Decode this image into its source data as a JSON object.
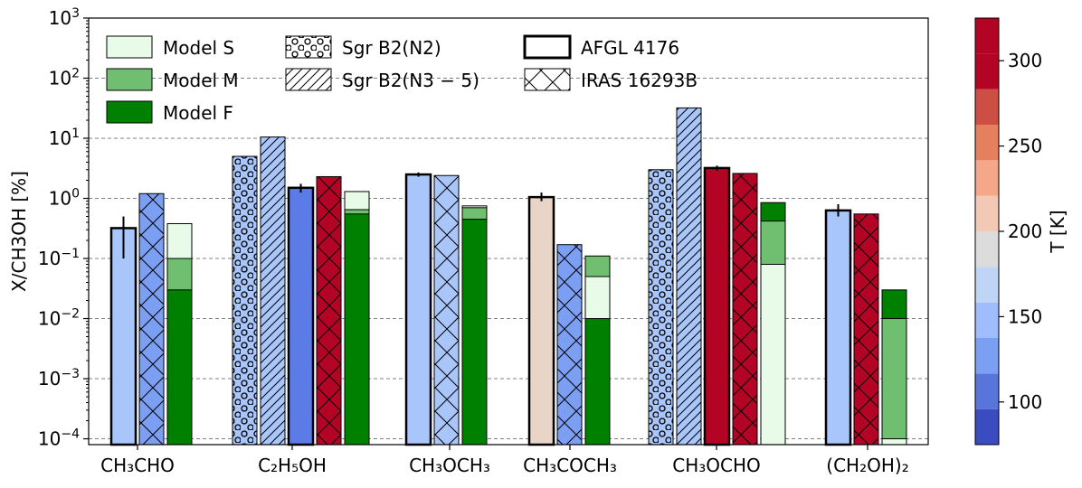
{
  "chart_data": {
    "type": "bar",
    "scale": "log",
    "ylabel": "X/CH3OH [%]",
    "ylim": [
      8e-05,
      1000
    ],
    "colorbar": {
      "label": "T [K]",
      "range": [
        75,
        325
      ],
      "ticks": [
        "100",
        "150",
        "200",
        "250",
        "300"
      ],
      "colors": [
        "#3b4cc0",
        "#5875dc",
        "#7b9ff2",
        "#9fbdfc",
        "#c0d4f5",
        "#dddcdc",
        "#f2c9b4",
        "#f5a889",
        "#e57f5e",
        "#cd4e42",
        "#b40426",
        "#b40426"
      ]
    },
    "groups": [
      {
        "name": "CH3CHO",
        "label": "CH₃CHO"
      },
      {
        "name": "C2H5OH",
        "label": "C₂H₅OH"
      },
      {
        "name": "CH3OCH3",
        "label": "CH₃OCH₃"
      },
      {
        "name": "CH3COCH3",
        "label": "CH₃COCH₃"
      },
      {
        "name": "CH3OCHO",
        "label": "CH₃OCHO"
      },
      {
        "name": "(CH2OH)2",
        "label": "(CH₂OH)₂"
      }
    ],
    "bars": [
      {
        "group": "CH3CHO",
        "source": "AFGL 4176",
        "value": 0.32,
        "err": [
          0.1,
          0.5
        ],
        "color": "#a9c6fb"
      },
      {
        "group": "CH3CHO",
        "source": "IRAS 16293B",
        "value": 1.2,
        "color": "#7b9ff2"
      },
      {
        "group": "CH3CHO",
        "source": "Model",
        "stack": [
          {
            "model": "F",
            "value": 0.03
          },
          {
            "model": "M",
            "value": 0.1
          },
          {
            "model": "S",
            "value": 0.38
          }
        ]
      },
      {
        "group": "C2H5OH",
        "source": "Sgr B2(N2)",
        "value": 5,
        "color": "#a9c6fb"
      },
      {
        "group": "C2H5OH",
        "source": "Sgr B2(N3-5)",
        "value": 10.5,
        "color": "#a9c6fb"
      },
      {
        "group": "C2H5OH",
        "source": "AFGL 4176",
        "value": 1.5,
        "err": [
          1.25,
          1.75
        ],
        "color": "#5b7be6"
      },
      {
        "group": "C2H5OH",
        "source": "IRAS 16293B",
        "value": 2.3,
        "color": "#b40426"
      },
      {
        "group": "C2H5OH",
        "source": "Model",
        "stack": [
          {
            "model": "F",
            "value": 0.55
          },
          {
            "model": "M",
            "value": 0.65
          },
          {
            "model": "S",
            "value": 1.3
          }
        ]
      },
      {
        "group": "CH3OCH3",
        "source": "AFGL 4176",
        "value": 2.5,
        "err": [
          2.3,
          2.7
        ],
        "color": "#a9c6fb"
      },
      {
        "group": "CH3OCH3",
        "source": "IRAS 16293B",
        "value": 2.4,
        "color": "#a9c6fb"
      },
      {
        "group": "CH3OCH3",
        "source": "Model",
        "stack": [
          {
            "model": "F",
            "value": 0.45
          },
          {
            "model": "M",
            "value": 0.7
          },
          {
            "model": "S",
            "value": 0.75
          }
        ]
      },
      {
        "group": "CH3COCH3",
        "source": "AFGL 4176",
        "value": 1.05,
        "err": [
          0.9,
          1.25
        ],
        "color": "#e8d5c8"
      },
      {
        "group": "CH3COCH3",
        "source": "IRAS 16293B",
        "value": 0.17,
        "color": "#7b9ff2"
      },
      {
        "group": "CH3COCH3",
        "source": "Model",
        "stack": [
          {
            "model": "F",
            "value": 0.01
          },
          {
            "model": "S",
            "value": 0.05
          },
          {
            "model": "M",
            "value": 0.11
          }
        ]
      },
      {
        "group": "CH3OCHO",
        "source": "Sgr B2(N2)",
        "value": 3,
        "color": "#a9c6fb"
      },
      {
        "group": "CH3OCHO",
        "source": "Sgr B2(N3-5)",
        "value": 32,
        "color": "#a9c6fb"
      },
      {
        "group": "CH3OCHO",
        "source": "AFGL 4176",
        "value": 3.2,
        "err": [
          2.9,
          3.5
        ],
        "color": "#b40426"
      },
      {
        "group": "CH3OCHO",
        "source": "IRAS 16293B",
        "value": 2.6,
        "color": "#b40426"
      },
      {
        "group": "CH3OCHO",
        "source": "Model",
        "stack": [
          {
            "model": "S",
            "value": 0.08
          },
          {
            "model": "M",
            "value": 0.42
          },
          {
            "model": "F",
            "value": 0.85
          }
        ]
      },
      {
        "group": "(CH2OH)2",
        "source": "AFGL 4176",
        "value": 0.63,
        "err": [
          0.5,
          0.8
        ],
        "color": "#a9c6fb"
      },
      {
        "group": "(CH2OH)2",
        "source": "IRAS 16293B",
        "value": 0.55,
        "color": "#b40426"
      },
      {
        "group": "(CH2OH)2",
        "source": "Model",
        "stack": [
          {
            "model": "S",
            "value": 0.0001
          },
          {
            "model": "M",
            "value": 0.01
          },
          {
            "model": "F",
            "value": 0.03
          }
        ]
      }
    ],
    "legend": [
      {
        "label": "Model S",
        "kind": "model",
        "model": "S"
      },
      {
        "label": "Model M",
        "kind": "model",
        "model": "M"
      },
      {
        "label": "Model F",
        "kind": "model",
        "model": "F"
      },
      {
        "label": "Sgr B2(N2)",
        "kind": "source",
        "source": "Sgr B2(N2)"
      },
      {
        "label": "Sgr B2(N3 − 5)",
        "kind": "source",
        "source": "Sgr B2(N3-5)"
      },
      {
        "label": "AFGL 4176",
        "kind": "source",
        "source": "AFGL 4176"
      },
      {
        "label": "IRAS 16293B",
        "kind": "source",
        "source": "IRAS 16293B"
      }
    ],
    "model_colors": {
      "S": "#e8fbe8",
      "M": "#70bf70",
      "F": "#008000"
    }
  }
}
